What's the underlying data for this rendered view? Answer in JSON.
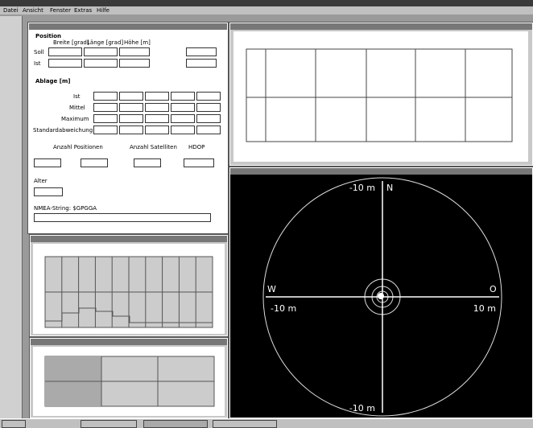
{
  "window": {
    "menu": [
      "Datei",
      "Ansicht",
      "Fenster",
      "Extras",
      "Hilfe"
    ]
  },
  "form": {
    "position_header": "Position",
    "columns": [
      "Breite [grad]",
      "Länge [grad]",
      "Höhe [m]"
    ],
    "rows": [
      "Soll",
      "Ist"
    ],
    "ablage": "Ablage [m]",
    "ablage_rows": [
      "Ist",
      "Mittel",
      "Maximum",
      "Standardabweichung"
    ],
    "anzahl_pos": "Anzahl Positionen",
    "anzahl_sat": "Anzahl Satelliten",
    "hdop": "HDOP",
    "alter": "Alter",
    "nmea": "NMEA-String: $GPGGA"
  },
  "polar": {
    "top": "-10 m",
    "north": "N",
    "west": "W",
    "east": "O",
    "left": "-10 m",
    "right": "10 m",
    "bottom": "-10 m"
  }
}
